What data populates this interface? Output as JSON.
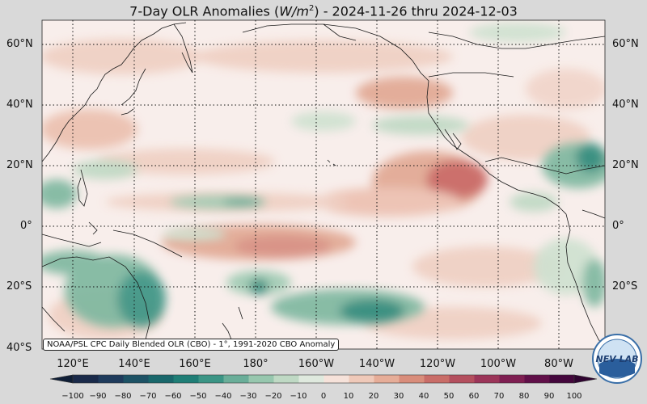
{
  "title": {
    "prefix": "7-Day OLR Anomalies (",
    "unit_main": "W/m",
    "unit_exp": "2",
    "suffix": ") - 2024-11-26 thru 2024-12-03"
  },
  "credit": "NOAA/PSL CPC Daily Blended OLR (CBO) - 1°, 1991-2020 CBO Anomaly",
  "logo_text": "NEV LAB",
  "lat_labels": [
    "60°N",
    "40°N",
    "20°N",
    "0°",
    "20°S",
    "40°S"
  ],
  "lon_labels": [
    "120°E",
    "140°E",
    "160°E",
    "180°",
    "160°W",
    "140°W",
    "120°W",
    "100°W",
    "80°W"
  ],
  "colorbar": {
    "ticks": [
      "−100",
      "−90",
      "−80",
      "−70",
      "−60",
      "−50",
      "−40",
      "−30",
      "−20",
      "−10",
      "0",
      "10",
      "20",
      "30",
      "40",
      "50",
      "60",
      "70",
      "80",
      "90",
      "100"
    ],
    "negative_colors": [
      "#1a2a4a",
      "#1f3b5c",
      "#1d5265",
      "#19676b",
      "#1f7e76",
      "#3b9585",
      "#6aae99",
      "#97c7ae",
      "#bfd9c4",
      "#dfe9de"
    ],
    "zero_color": "#f8f0ee",
    "positive_colors": [
      "#f6e2da",
      "#efc9b9",
      "#e6ad98",
      "#d98d7b",
      "#c96d68",
      "#b44f5e",
      "#9c3559",
      "#7f1f52",
      "#611049",
      "#43063c"
    ]
  },
  "map": {
    "colors": {
      "background": "#f8eeeb",
      "positive_weak": "#efcfc2",
      "positive_mid": "#e1a792",
      "positive_strong": "#c8645f",
      "negative_weak": "#cfe1d0",
      "negative_mid": "#7fb8a0",
      "negative_strong": "#1f7e70",
      "coast": "#1a1a1a"
    }
  }
}
